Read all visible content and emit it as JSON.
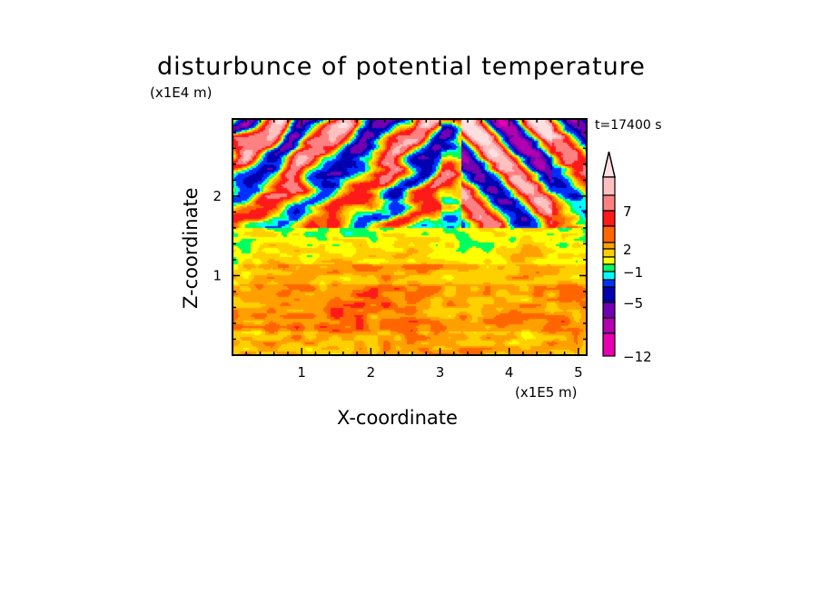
{
  "chart_data": {
    "type": "heatmap",
    "title": "disturbunce of potential temperature",
    "xlabel": "X-coordinate",
    "ylabel": "Z-coordinate",
    "x_unit": "(x1E5 m)",
    "y_unit": "(x1E4 m)",
    "time_label": "t=17400 s",
    "xlim": [
      0,
      5.12
    ],
    "ylim": [
      0,
      2.97
    ],
    "xticks": [
      1,
      2,
      3,
      4,
      5
    ],
    "yticks": [
      1,
      2
    ],
    "xtick_labels": [
      "1",
      "2",
      "3",
      "4",
      "5"
    ],
    "ytick_labels": [
      "1",
      "2"
    ],
    "colorbar": {
      "labels": [
        {
          "value": 7,
          "text": "7"
        },
        {
          "value": 2,
          "text": "2"
        },
        {
          "value": -1,
          "text": "−1"
        },
        {
          "value": -5,
          "text": "−5"
        },
        {
          "value": -12,
          "text": "−12"
        }
      ],
      "extend": "max",
      "colors_top_to_bottom": [
        "#ffe0e0",
        "#ffc0c0",
        "#ff8080",
        "#ff1a1a",
        "#ff6600",
        "#ffa000",
        "#ffd000",
        "#ffff00",
        "#00ff60",
        "#00ffff",
        "#0030ff",
        "#0000b0",
        "#7000b0",
        "#b000b0",
        "#e800b0"
      ]
    },
    "field_description_levels": {
      "lower_layer_z_below_1.2": "yellow with orange patches (0 to 3)",
      "middle_layer_z_1.2_to_1.7": "green/cyan (-1 to 0)",
      "upper_layer_z_above_1.7": "alternating red/orange and blue/purple wave bands (-12 to 9)"
    }
  }
}
